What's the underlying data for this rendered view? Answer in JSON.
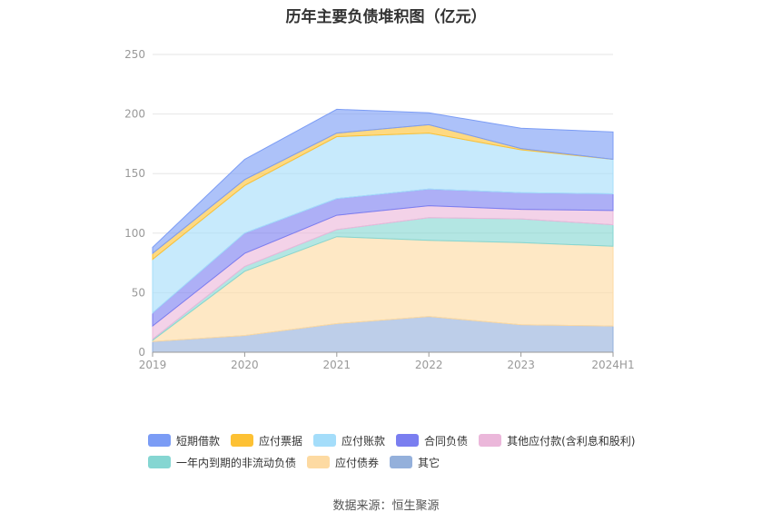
{
  "chart_data": {
    "type": "area",
    "title": "历年主要负债堆积图（亿元）",
    "x": [
      "2019",
      "2020",
      "2021",
      "2022",
      "2023",
      "2024H1"
    ],
    "ylim": [
      0,
      250
    ],
    "yticks": [
      0,
      50,
      100,
      150,
      200,
      250
    ],
    "grid": true,
    "legend_position": "bottom",
    "stacked": true,
    "series": [
      {
        "name": "短期借款",
        "color": "#7b9cf5",
        "values": [
          5,
          17,
          20,
          10,
          17,
          23
        ]
      },
      {
        "name": "应付票据",
        "color": "#fdc134",
        "values": [
          5,
          5,
          3,
          7,
          1,
          0
        ]
      },
      {
        "name": "应付账款",
        "color": "#a4ddfa",
        "values": [
          45,
          40,
          52,
          47,
          36,
          29
        ]
      },
      {
        "name": "合同负债",
        "color": "#7a7ef0",
        "values": [
          11,
          17,
          14,
          14,
          14,
          14
        ]
      },
      {
        "name": "其他应付款(含利息和股利)",
        "color": "#ebb7da",
        "values": [
          11,
          11,
          12,
          10,
          8,
          12
        ]
      },
      {
        "name": "一年内到期的非流动负债",
        "color": "#85d6d2",
        "values": [
          1,
          4,
          6,
          19,
          20,
          18
        ]
      },
      {
        "name": "应付债券",
        "color": "#fddaa2",
        "values": [
          1,
          54,
          73,
          64,
          69,
          67
        ]
      },
      {
        "name": "其它",
        "color": "#94b0db",
        "values": [
          9,
          14,
          24,
          30,
          23,
          22
        ]
      }
    ]
  },
  "source": "数据来源：恒生聚源"
}
